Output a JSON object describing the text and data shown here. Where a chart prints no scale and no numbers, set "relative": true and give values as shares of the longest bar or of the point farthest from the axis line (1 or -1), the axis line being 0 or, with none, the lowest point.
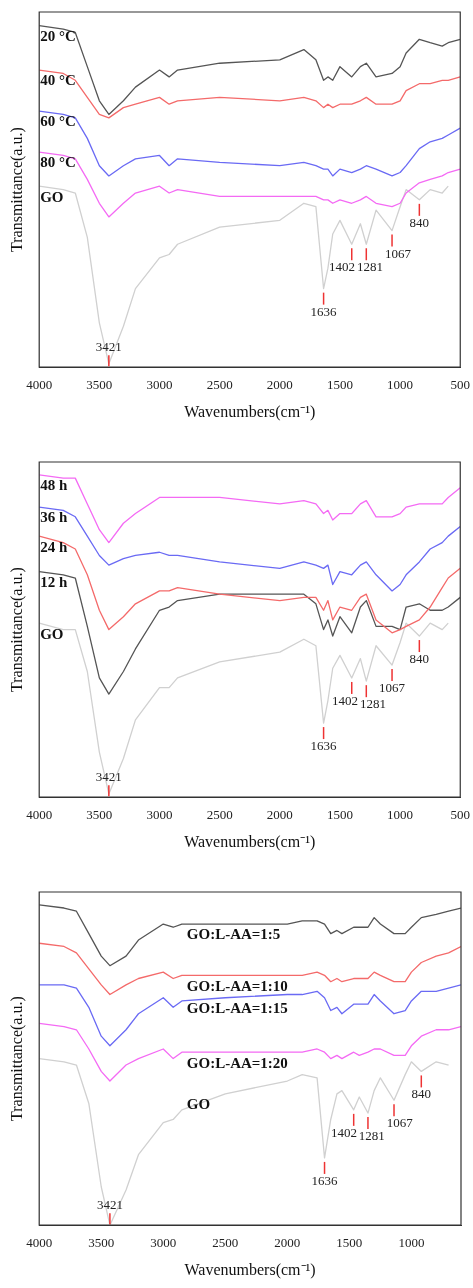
{
  "chart_data": [
    {
      "type": "line",
      "xlabel": "Wavenumbers(cm⁻¹)",
      "ylabel": "Transmittance(a.u.)",
      "relative": true,
      "marker": "none",
      "xlim": [
        4000,
        500
      ],
      "xticks": [
        4000,
        3500,
        3000,
        2500,
        2000,
        1500,
        1000,
        500
      ],
      "x": [
        4000,
        3800,
        3700,
        3600,
        3500,
        3421,
        3300,
        3200,
        3000,
        2920,
        2850,
        2500,
        2000,
        1800,
        1700,
        1636,
        1600,
        1560,
        1500,
        1402,
        1330,
        1281,
        1200,
        1067,
        1000,
        950,
        840,
        750,
        650,
        600,
        500
      ],
      "series": [
        {
          "name": "20 °C",
          "color": "#555555",
          "values": [
            1.0,
            0.99,
            0.98,
            0.88,
            0.78,
            0.74,
            0.78,
            0.82,
            0.87,
            0.85,
            0.87,
            0.89,
            0.9,
            0.93,
            0.9,
            0.84,
            0.85,
            0.84,
            0.88,
            0.85,
            0.88,
            0.89,
            0.85,
            0.86,
            0.88,
            0.92,
            0.96,
            0.95,
            0.94,
            0.95,
            0.96
          ]
        },
        {
          "name": "40 °C",
          "color": "#f46a6a",
          "values": [
            0.87,
            0.86,
            0.84,
            0.79,
            0.74,
            0.73,
            0.76,
            0.77,
            0.79,
            0.77,
            0.78,
            0.79,
            0.78,
            0.79,
            0.78,
            0.76,
            0.77,
            0.76,
            0.77,
            0.77,
            0.78,
            0.79,
            0.77,
            0.77,
            0.78,
            0.81,
            0.83,
            0.83,
            0.84,
            0.84,
            0.85
          ]
        },
        {
          "name": "60 °C",
          "color": "#6a6af4",
          "values": [
            0.75,
            0.74,
            0.73,
            0.67,
            0.59,
            0.56,
            0.59,
            0.61,
            0.62,
            0.59,
            0.61,
            0.6,
            0.59,
            0.6,
            0.59,
            0.58,
            0.58,
            0.56,
            0.58,
            0.57,
            0.58,
            0.59,
            0.58,
            0.56,
            0.57,
            0.59,
            0.64,
            0.66,
            0.67,
            0.68,
            0.7
          ]
        },
        {
          "name": "80 °C",
          "color": "#f46af4",
          "values": [
            0.63,
            0.62,
            0.61,
            0.55,
            0.48,
            0.44,
            0.48,
            0.51,
            0.53,
            0.51,
            0.52,
            0.5,
            0.5,
            0.5,
            0.5,
            0.49,
            0.49,
            0.48,
            0.49,
            0.48,
            0.49,
            0.5,
            0.48,
            0.47,
            0.48,
            0.51,
            0.54,
            0.55,
            0.56,
            0.57,
            0.58
          ]
        },
        {
          "name": "GO",
          "color": "#d0d0d0",
          "values": [
            0.53,
            0.52,
            0.51,
            0.38,
            0.13,
            0.01,
            0.12,
            0.23,
            0.32,
            0.33,
            0.36,
            0.41,
            0.43,
            0.48,
            0.47,
            0.23,
            0.29,
            0.39,
            0.43,
            0.36,
            0.42,
            0.36,
            0.46,
            0.4,
            0.47,
            0.52,
            0.49,
            0.52,
            0.51,
            0.53,
            null
          ]
        }
      ],
      "annotations": [
        {
          "text": "3421",
          "x": 3421,
          "y": 0.01
        },
        {
          "text": "1636",
          "x": 1636,
          "y": 0.23
        },
        {
          "text": "1402",
          "x": 1402,
          "y": 0.36
        },
        {
          "text": "1281",
          "x": 1281,
          "y": 0.36
        },
        {
          "text": "1067",
          "x": 1067,
          "y": 0.4
        },
        {
          "text": "840",
          "x": 840,
          "y": 0.49
        }
      ]
    },
    {
      "type": "line",
      "xlabel": "Wavenumbers(cm⁻¹)",
      "ylabel": "Transmittance(a.u.)",
      "relative": true,
      "marker": "none",
      "xlim": [
        4000,
        500
      ],
      "xticks": [
        4000,
        3500,
        3000,
        2500,
        2000,
        1500,
        1000,
        500
      ],
      "x": [
        4000,
        3800,
        3700,
        3600,
        3500,
        3421,
        3300,
        3200,
        3000,
        2920,
        2850,
        2500,
        2000,
        1800,
        1700,
        1636,
        1600,
        1560,
        1500,
        1402,
        1330,
        1281,
        1200,
        1067,
        1000,
        950,
        840,
        750,
        650,
        600,
        500
      ],
      "series": [
        {
          "name": "48 h",
          "color": "#f46af4",
          "values": [
            1.0,
            0.99,
            0.99,
            0.91,
            0.83,
            0.79,
            0.85,
            0.88,
            0.93,
            0.93,
            0.93,
            0.93,
            0.91,
            0.92,
            0.91,
            0.88,
            0.89,
            0.86,
            0.88,
            0.88,
            0.91,
            0.92,
            0.87,
            0.87,
            0.88,
            0.9,
            0.91,
            0.91,
            0.91,
            0.93,
            0.96
          ]
        },
        {
          "name": "36 h",
          "color": "#6a6af4",
          "values": [
            0.9,
            0.89,
            0.87,
            0.81,
            0.75,
            0.72,
            0.74,
            0.75,
            0.76,
            0.75,
            0.75,
            0.73,
            0.71,
            0.73,
            0.72,
            0.71,
            0.72,
            0.66,
            0.7,
            0.69,
            0.72,
            0.73,
            0.69,
            0.64,
            0.66,
            0.69,
            0.73,
            0.77,
            0.79,
            0.81,
            0.84
          ]
        },
        {
          "name": "24 h",
          "color": "#f46a6a",
          "values": [
            0.81,
            0.79,
            0.77,
            0.69,
            0.58,
            0.52,
            0.56,
            0.6,
            0.64,
            0.64,
            0.65,
            0.63,
            0.61,
            0.62,
            0.62,
            0.58,
            0.61,
            0.55,
            0.59,
            0.58,
            0.62,
            0.63,
            0.55,
            0.51,
            0.52,
            0.53,
            0.55,
            0.59,
            0.65,
            0.68,
            0.71
          ]
        },
        {
          "name": "12 h",
          "color": "#555555",
          "values": [
            0.7,
            0.69,
            0.68,
            0.53,
            0.37,
            0.32,
            0.39,
            0.46,
            0.58,
            0.59,
            0.61,
            0.63,
            0.63,
            0.63,
            0.6,
            0.52,
            0.55,
            0.5,
            0.56,
            0.51,
            0.59,
            0.61,
            0.53,
            0.53,
            0.52,
            0.59,
            0.6,
            0.58,
            0.58,
            0.59,
            0.62
          ]
        },
        {
          "name": "GO",
          "color": "#d0d0d0",
          "values": [
            0.54,
            0.52,
            0.52,
            0.39,
            0.14,
            0.01,
            0.12,
            0.24,
            0.34,
            0.34,
            0.37,
            0.42,
            0.45,
            0.49,
            0.47,
            0.23,
            0.3,
            0.4,
            0.44,
            0.37,
            0.43,
            0.36,
            0.47,
            0.41,
            0.48,
            0.54,
            0.5,
            0.54,
            0.52,
            0.54,
            null
          ]
        }
      ],
      "annotations": [
        {
          "text": "3421",
          "x": 3421,
          "y": 0.01
        },
        {
          "text": "1636",
          "x": 1636,
          "y": 0.23
        },
        {
          "text": "1402",
          "x": 1402,
          "y": 0.37
        },
        {
          "text": "1281",
          "x": 1281,
          "y": 0.36
        },
        {
          "text": "1067",
          "x": 1067,
          "y": 0.41
        },
        {
          "text": "840",
          "x": 840,
          "y": 0.5
        }
      ]
    },
    {
      "type": "line",
      "xlabel": "Wavenumbers(cm⁻¹)",
      "ylabel": "Transmittance(a.u.)",
      "relative": true,
      "marker": "none",
      "xlim": [
        4000,
        600
      ],
      "xticks": [
        4000,
        3500,
        3000,
        2500,
        2000,
        1500,
        1000
      ],
      "x": [
        4000,
        3800,
        3700,
        3600,
        3500,
        3430,
        3300,
        3200,
        3000,
        2920,
        2850,
        2500,
        2000,
        1880,
        1760,
        1700,
        1650,
        1600,
        1560,
        1465,
        1420,
        1350,
        1300,
        1250,
        1140,
        1050,
        1000,
        920,
        800,
        700,
        600
      ],
      "series": [
        {
          "name": "GO:L-AA=1:5",
          "color": "#555555",
          "values": [
            1.0,
            0.99,
            0.98,
            0.91,
            0.84,
            0.81,
            0.84,
            0.89,
            0.94,
            0.93,
            0.94,
            0.94,
            0.94,
            0.95,
            0.95,
            0.94,
            0.91,
            0.92,
            0.91,
            0.93,
            0.93,
            0.93,
            0.96,
            0.94,
            0.91,
            0.91,
            0.93,
            0.96,
            0.97,
            0.98,
            0.99
          ]
        },
        {
          "name": "GO:L-AA=1:10",
          "color": "#f46a6a",
          "values": [
            0.88,
            0.87,
            0.85,
            0.8,
            0.75,
            0.72,
            0.75,
            0.77,
            0.79,
            0.77,
            0.78,
            0.78,
            0.78,
            0.78,
            0.79,
            0.78,
            0.76,
            0.77,
            0.76,
            0.77,
            0.77,
            0.77,
            0.79,
            0.78,
            0.76,
            0.76,
            0.79,
            0.82,
            0.84,
            0.85,
            0.87
          ]
        },
        {
          "name": "GO:L-AA=1:15",
          "color": "#6a6af4",
          "values": [
            0.75,
            0.75,
            0.74,
            0.68,
            0.59,
            0.56,
            0.61,
            0.66,
            0.71,
            0.68,
            0.7,
            0.71,
            0.72,
            0.72,
            0.73,
            0.71,
            0.67,
            0.68,
            0.66,
            0.69,
            0.69,
            0.69,
            0.72,
            0.7,
            0.66,
            0.67,
            0.7,
            0.73,
            0.73,
            0.74,
            0.75
          ]
        },
        {
          "name": "GO:L-AA=1:20",
          "color": "#f46af4",
          "values": [
            0.63,
            0.62,
            0.61,
            0.55,
            0.48,
            0.45,
            0.5,
            0.52,
            0.55,
            0.52,
            0.54,
            0.54,
            0.54,
            0.54,
            0.55,
            0.54,
            0.52,
            0.53,
            0.52,
            0.54,
            0.53,
            0.54,
            0.55,
            0.55,
            0.53,
            0.53,
            0.56,
            0.59,
            0.61,
            0.61,
            0.62
          ]
        },
        {
          "name": "GO",
          "color": "#d0d0d0",
          "values": [
            0.52,
            0.51,
            0.5,
            0.38,
            0.12,
            0.0,
            0.11,
            0.22,
            0.32,
            0.33,
            0.36,
            0.41,
            0.45,
            0.47,
            0.46,
            0.21,
            0.33,
            0.41,
            0.42,
            0.36,
            0.4,
            0.35,
            0.42,
            0.46,
            0.39,
            0.47,
            0.51,
            0.48,
            0.51,
            0.5,
            null
          ]
        }
      ],
      "annotations": [
        {
          "text": "3421",
          "x": 3430,
          "y": 0.0
        },
        {
          "text": "1636",
          "x": 1700,
          "y": 0.21
        },
        {
          "text": "1402",
          "x": 1465,
          "y": 0.36
        },
        {
          "text": "1281",
          "x": 1350,
          "y": 0.35
        },
        {
          "text": "1067",
          "x": 1140,
          "y": 0.39
        },
        {
          "text": "840",
          "x": 920,
          "y": 0.48
        }
      ]
    }
  ]
}
